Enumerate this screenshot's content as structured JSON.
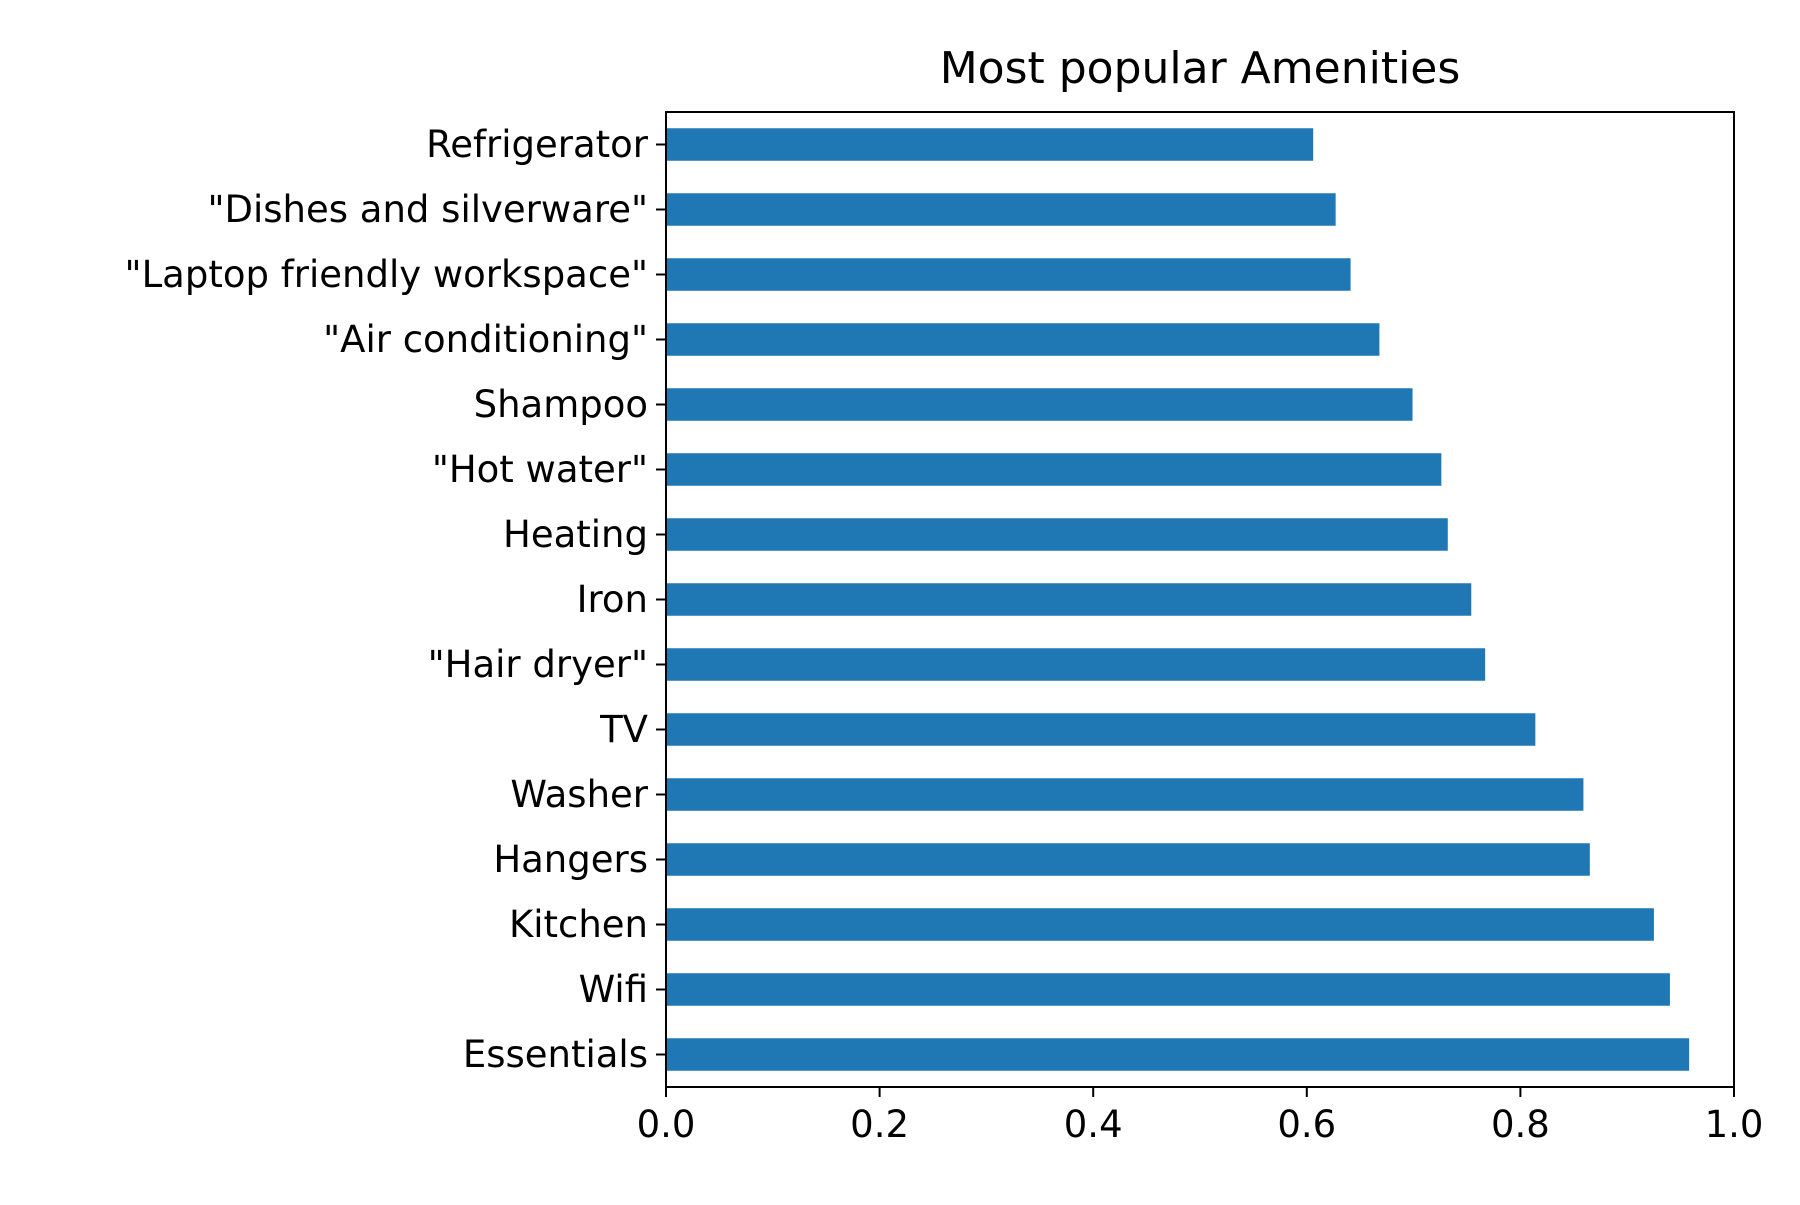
{
  "chart_data": {
    "type": "bar",
    "orientation": "horizontal",
    "title": "Most popular Amenities",
    "xlabel": "",
    "ylabel": "",
    "categories": [
      "Essentials",
      "Wifi",
      "Kitchen",
      "Hangers",
      "Washer",
      "TV",
      "\"Hair dryer\"",
      "Iron",
      "Heating",
      "\"Hot water\"",
      "Shampoo",
      "\"Air conditioning\"",
      "\"Laptop friendly workspace\"",
      "\"Dishes and silverware\"",
      "Refrigerator"
    ],
    "values": [
      0.958,
      0.94,
      0.925,
      0.865,
      0.859,
      0.814,
      0.767,
      0.754,
      0.732,
      0.726,
      0.699,
      0.668,
      0.641,
      0.627,
      0.606
    ],
    "xlim": [
      0.0,
      1.0
    ],
    "xticks": [
      0.0,
      0.2,
      0.4,
      0.6,
      0.8,
      1.0
    ],
    "xtick_labels": [
      "0.0",
      "0.2",
      "0.4",
      "0.6",
      "0.8",
      "1.0"
    ],
    "grid": false,
    "legend": "none",
    "bar_color": "#1f77b4"
  }
}
